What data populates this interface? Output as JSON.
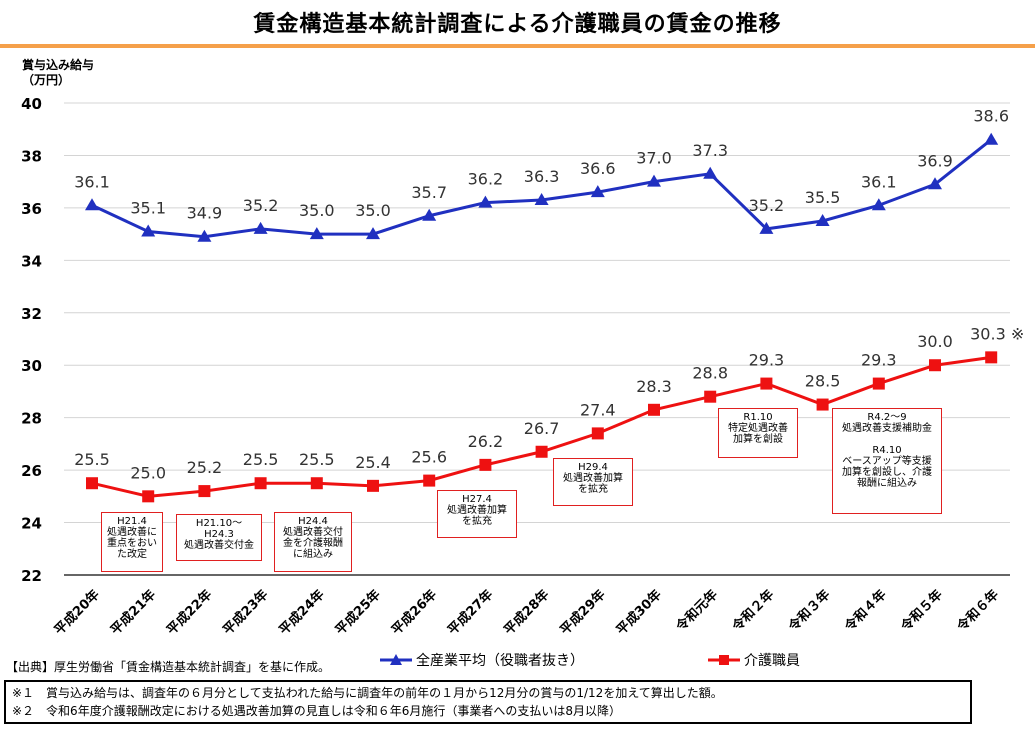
{
  "header": {
    "title": "賃金構造基本統計調査による介護職員の賃金の推移"
  },
  "chart_data": {
    "type": "line",
    "title": "賃金構造基本統計調査による介護職員の賃金の推移",
    "ylabel": "賞与込み給与\n（万円）",
    "xlabel": "",
    "ylim": [
      22,
      40
    ],
    "yticks": [
      "22",
      "24",
      "26",
      "28",
      "30",
      "32",
      "34",
      "36",
      "38",
      "40"
    ],
    "grid": true,
    "legend_position": "bottom",
    "categories": [
      "平成20年",
      "平成21年",
      "平成22年",
      "平成23年",
      "平成24年",
      "平成25年",
      "平成26年",
      "平成27年",
      "平成28年",
      "平成29年",
      "平成30年",
      "令和元年",
      "令和２年",
      "令和３年",
      "令和４年",
      "令和５年",
      "令和６年"
    ],
    "series": [
      {
        "name": "全産業平均（役職者抜き）",
        "color": "#2030c0",
        "marker": "triangle",
        "values": [
          36.1,
          35.1,
          34.9,
          35.2,
          35.0,
          35.0,
          35.7,
          36.2,
          36.3,
          36.6,
          37.0,
          37.3,
          35.2,
          35.5,
          36.1,
          36.9,
          38.6
        ],
        "labels": [
          "36.1",
          "35.1",
          "34.9",
          "35.2",
          "35.0",
          "35.0",
          "35.7",
          "36.2",
          "36.3",
          "36.6",
          "37.0",
          "37.3",
          "35.2",
          "35.5",
          "36.1",
          "36.9",
          "38.6"
        ]
      },
      {
        "name": "介護職員",
        "color": "#ee1111",
        "marker": "square",
        "values": [
          25.5,
          25.0,
          25.2,
          25.5,
          25.5,
          25.4,
          25.6,
          26.2,
          26.7,
          27.4,
          28.3,
          28.8,
          29.3,
          28.5,
          29.3,
          30.0,
          30.3
        ],
        "labels": [
          "25.5",
          "25.0",
          "25.2",
          "25.5",
          "25.5",
          "25.4",
          "25.6",
          "26.2",
          "26.7",
          "27.4",
          "28.3",
          "28.8",
          "29.3",
          "28.5",
          "29.3",
          "30.0",
          "30.3 ※"
        ]
      }
    ],
    "annotations": [
      "H21.4\n処遇改善に\n重点をおい\nた改定",
      "H21.10～\nH24.3\n処遇改善交付金",
      "H24.4\n処遇改善交付\n金を介護報酬\nに組込み",
      "H27.4\n処遇改善加算\nを拡充",
      "H29.4\n処遇改善加算\nを拡充",
      "R1.10\n特定処遇改善\n加算を創設",
      "R4.2～9\n処遇改善支援補助金\n\nR4.10\nベースアップ等支援\n加算を創設し、介護\n報酬に組込み"
    ]
  },
  "source": "【出典】厚生労働省「賃金構造基本統計調査」を基に作成。",
  "footnotes": [
    "※１　賞与込み給与は、調査年の６月分として支払われた給与に調査年の前年の１月から12月分の賞与の1/12を加えて算出した額。",
    "※２　令和6年度介護報酬改定における処遇改善加算の見直しは令和６年6月施行（事業者への支払いは8月以降）"
  ]
}
